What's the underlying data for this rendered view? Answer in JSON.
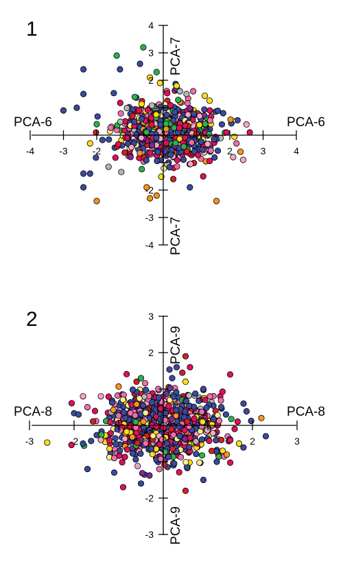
{
  "chart_data": [
    {
      "type": "scatter",
      "panel_label": "1",
      "title": "",
      "xlabel": "PCA-6",
      "ylabel": "PCA-7",
      "xlim": [
        -4,
        4
      ],
      "ylim": [
        -4,
        4
      ],
      "x_ticks": [
        {
          "v": -4,
          "label": "-4"
        },
        {
          "v": -3,
          "label": "-3"
        },
        {
          "v": -2,
          "label": "-2"
        },
        {
          "v": 2,
          "label": "2"
        },
        {
          "v": 3,
          "label": "3"
        },
        {
          "v": 4,
          "label": "4"
        }
      ],
      "y_ticks": [
        {
          "v": 4,
          "label": "4"
        },
        {
          "v": 3,
          "label": "3"
        },
        {
          "v": 2,
          "label": "2"
        },
        {
          "v": -2,
          "label": "-2"
        },
        {
          "v": -3,
          "label": "-3"
        },
        {
          "v": -4,
          "label": "-4"
        }
      ],
      "grid": false,
      "legend": "none",
      "colors": [
        "#3a4a9c",
        "#e0105a",
        "#f06eaa",
        "#f4a6c8",
        "#d51f26",
        "#f7941d",
        "#ffde17",
        "#ffee88",
        "#2bb34a",
        "#b5b5b5",
        "#7b2d8e"
      ],
      "color_weights": [
        34,
        16,
        10,
        7,
        7,
        5,
        6,
        4,
        4,
        4,
        3
      ],
      "point_count": 800,
      "spread": {
        "sx": 0.72,
        "sy": 0.52,
        "cx": 0.15,
        "cy": 0.1
      },
      "outliers": [
        [
          -2.4,
          2.4,
          0
        ],
        [
          -2.6,
          1.0,
          0
        ],
        [
          -2.4,
          1.5,
          0
        ],
        [
          -1.4,
          2.9,
          8
        ],
        [
          -1.3,
          2.4,
          0
        ],
        [
          -0.7,
          2.6,
          0
        ],
        [
          -0.6,
          3.2,
          8
        ],
        [
          -0.4,
          2.1,
          6
        ],
        [
          -0.1,
          1.9,
          6
        ],
        [
          0.5,
          1.6,
          9
        ],
        [
          0.7,
          1.5,
          9
        ],
        [
          0.9,
          1.6,
          2
        ],
        [
          1.4,
          0.9,
          1
        ],
        [
          1.9,
          0.1,
          1
        ],
        [
          2.2,
          -0.3,
          2
        ],
        [
          -3.0,
          0.9,
          0
        ],
        [
          -2.0,
          0.4,
          8
        ],
        [
          -2.2,
          -0.3,
          6
        ],
        [
          -2.4,
          -1.4,
          0
        ],
        [
          -2.2,
          -1.4,
          0
        ],
        [
          -2.4,
          -1.9,
          0
        ],
        [
          -2.0,
          -2.4,
          5
        ],
        [
          -0.5,
          -1.9,
          5
        ],
        [
          -0.4,
          -2.3,
          5
        ],
        [
          -0.2,
          -2.2,
          5
        ],
        [
          0.3,
          -1.6,
          4
        ],
        [
          1.2,
          -1.5,
          1
        ],
        [
          1.6,
          -2.4,
          5
        ],
        [
          0.8,
          -1.9,
          0
        ],
        [
          2.1,
          -0.8,
          3
        ],
        [
          2.4,
          -0.9,
          3
        ],
        [
          2.6,
          0.1,
          1
        ],
        [
          1.8,
          0.8,
          0
        ],
        [
          0.4,
          1.8,
          6
        ],
        [
          -0.2,
          2.3,
          8
        ]
      ]
    },
    {
      "type": "scatter",
      "panel_label": "2",
      "title": "",
      "xlabel": "PCA-8",
      "ylabel": "PCA-9",
      "xlim": [
        -3,
        3
      ],
      "ylim": [
        -3,
        3
      ],
      "x_ticks": [
        {
          "v": -3,
          "label": "-3"
        },
        {
          "v": -2,
          "label": "-2"
        },
        {
          "v": 2,
          "label": "2"
        },
        {
          "v": 3,
          "label": "3"
        }
      ],
      "y_ticks": [
        {
          "v": 3,
          "label": "3"
        },
        {
          "v": 2,
          "label": "2"
        },
        {
          "v": -2,
          "label": "-2"
        },
        {
          "v": -3,
          "label": "-3"
        }
      ],
      "grid": false,
      "legend": "none",
      "colors": [
        "#3a4a9c",
        "#e0105a",
        "#f06eaa",
        "#f4a6c8",
        "#d51f26",
        "#f7941d",
        "#ffde17",
        "#ffee88",
        "#2bb34a",
        "#b5b5b5",
        "#7b2d8e"
      ],
      "color_weights": [
        34,
        16,
        10,
        7,
        7,
        5,
        6,
        4,
        4,
        4,
        3
      ],
      "point_count": 900,
      "spread": {
        "sx": 0.62,
        "sy": 0.48,
        "cx": 0.0,
        "cy": 0.0
      },
      "outliers": [
        [
          0.5,
          1.9,
          4
        ],
        [
          0.3,
          1.6,
          0
        ],
        [
          0.2,
          1.3,
          0
        ],
        [
          0.5,
          1.2,
          6
        ],
        [
          -0.5,
          1.3,
          8
        ],
        [
          -1.8,
          0.8,
          3
        ],
        [
          -1.7,
          0.5,
          2
        ],
        [
          -1.9,
          0.3,
          0
        ],
        [
          -1.4,
          -0.4,
          3
        ],
        [
          -1.8,
          -0.5,
          0
        ],
        [
          -1.7,
          -1.2,
          0
        ],
        [
          -1.1,
          -1.3,
          0
        ],
        [
          -0.5,
          -1.6,
          0
        ],
        [
          -0.9,
          -1.7,
          1
        ],
        [
          0.5,
          -1.8,
          4
        ],
        [
          0.9,
          -1.5,
          0
        ],
        [
          1.3,
          0.5,
          0
        ],
        [
          1.8,
          0.6,
          0
        ],
        [
          2.2,
          0.2,
          5
        ],
        [
          2.3,
          -0.3,
          0
        ],
        [
          1.7,
          -0.5,
          6
        ],
        [
          1.6,
          -0.1,
          1
        ],
        [
          0.6,
          1.6,
          1
        ],
        [
          -0.6,
          1.2,
          4
        ],
        [
          -1.4,
          0.8,
          3
        ],
        [
          0.9,
          1.0,
          0
        ],
        [
          1.2,
          -1.0,
          0
        ],
        [
          -1.1,
          -0.9,
          2
        ]
      ]
    }
  ]
}
